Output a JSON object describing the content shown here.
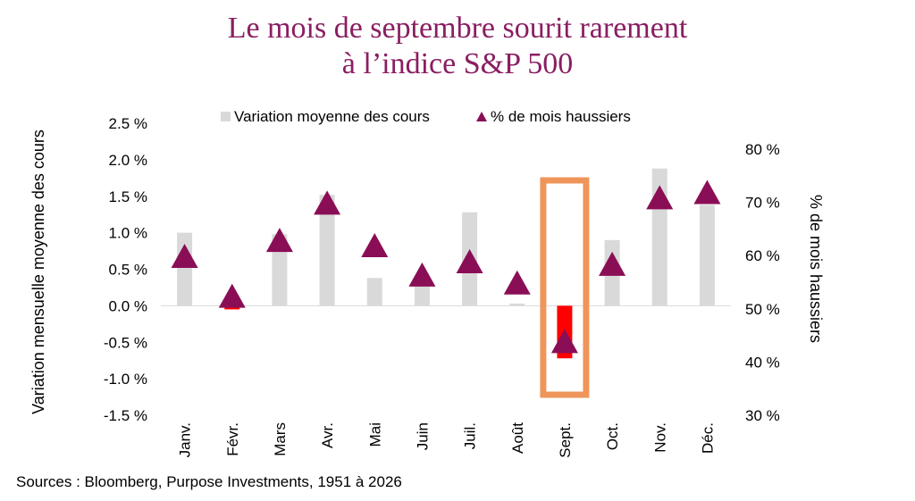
{
  "title_line1": "Le mois de septembre sourit rarement",
  "title_line2": "à l’indice S&P 500",
  "source": "Sources : Bloomberg, Purpose Investments, 1951 à 2026",
  "colors": {
    "title": "#8a1e62",
    "bar": "#d9d9d9",
    "bar_negative": "#ff0000",
    "marker": "#8a0e56",
    "highlight_box": "#f0955a"
  },
  "chart_data": {
    "type": "bar",
    "categories": [
      "Janv.",
      "Févr.",
      "Mars",
      "Avr.",
      "Mai",
      "Juin",
      "Juil.",
      "Août",
      "Sept.",
      "Oct.",
      "Nov.",
      "Déc."
    ],
    "series": [
      {
        "name": "Variation moyenne des cours",
        "type": "bar",
        "axis": "left",
        "values": [
          1.0,
          -0.05,
          0.98,
          1.52,
          0.38,
          0.3,
          1.28,
          0.03,
          -0.72,
          0.9,
          1.88,
          1.38
        ]
      },
      {
        "name": "% de mois haussiers",
        "type": "marker",
        "marker": "triangle",
        "axis": "right",
        "values": [
          59.5,
          52.0,
          62.5,
          69.5,
          61.5,
          56.0,
          58.5,
          54.5,
          43.5,
          58.0,
          70.5,
          71.5
        ]
      }
    ],
    "ylabel": "Variation mensuelle moyenne des cours",
    "ylabel_right": "% de mois haussiers",
    "ylim": [
      -1.5,
      2.5
    ],
    "ylim_right": [
      30,
      80
    ],
    "yticks": [
      "2.5 %",
      "2.0 %",
      "1.5 %",
      "1.0 %",
      "0.5 %",
      "0.0 %",
      "-0.5 %",
      "-1.0 %",
      "-1.5 %"
    ],
    "yticks_right": [
      "80 %",
      "70 %",
      "60 %",
      "50 %",
      "40 %",
      "30 %"
    ],
    "highlight_category": "Sept.",
    "legend_position": "top",
    "grid": false
  }
}
